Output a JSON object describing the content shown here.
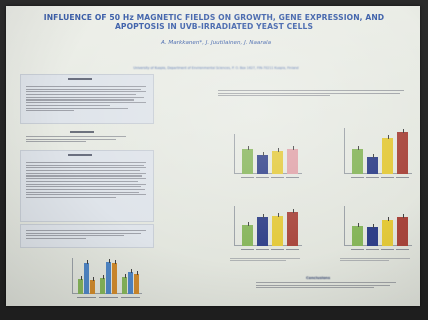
{
  "poster": {
    "title_line1": "INFLUENCE OF 50 Hz MAGNETIC FIELDS ON GROWTH, GENE EXPRESSION, AND",
    "title_line2": "APOPTOSIS IN UVB-IRRADIATED YEAST CELLS",
    "authors": "A. Markkanen*, J. Juutilainen, J. Naarala",
    "affiliation": "University of Kuopio, Department of Environmental Sciences, P. O. Box 1627, FIN-70211 Kuopio, Finland",
    "headings": {
      "conclusions": "Conclusions",
      "results": "Results"
    }
  },
  "colors": {
    "title": "#3c5fa9",
    "poster_background": "#e7eae3",
    "bar_green": "#86b55a",
    "bar_navy": "#2f3f88",
    "bar_yellow": "#e3c93a",
    "bar_red": "#a8453c",
    "bar_pink": "#e0a2a8",
    "bar_blue": "#4f86c6",
    "bar_orange": "#d08a2c"
  },
  "chart_data": [
    {
      "type": "bar",
      "heights_relative": [
        0.62,
        0.48,
        0.58,
        0.62
      ],
      "colors": [
        "bar_green",
        "bar_navy",
        "bar_yellow",
        "bar_pink"
      ]
    },
    {
      "type": "bar",
      "heights_relative": [
        0.55,
        0.38,
        0.78,
        0.92
      ],
      "colors": [
        "bar_green",
        "bar_navy",
        "bar_yellow",
        "bar_red"
      ]
    },
    {
      "type": "bar",
      "heights_relative": [
        0.52,
        0.72,
        0.74,
        0.86
      ],
      "colors": [
        "bar_green",
        "bar_navy",
        "bar_yellow",
        "bar_red"
      ]
    },
    {
      "type": "bar",
      "heights_relative": [
        0.5,
        0.48,
        0.66,
        0.72
      ],
      "colors": [
        "bar_green",
        "bar_navy",
        "bar_yellow",
        "bar_red"
      ]
    },
    {
      "type": "bar",
      "groups": [
        {
          "heights_relative": [
            0.42,
            0.86,
            0.38
          ],
          "colors": [
            "bar_green",
            "bar_blue",
            "bar_orange"
          ]
        },
        {
          "heights_relative": [
            0.44,
            0.9,
            0.86
          ],
          "colors": [
            "bar_green",
            "bar_blue",
            "bar_orange"
          ]
        },
        {
          "heights_relative": [
            0.46,
            0.62,
            0.56
          ],
          "colors": [
            "bar_green",
            "bar_blue",
            "bar_orange"
          ]
        }
      ]
    }
  ]
}
